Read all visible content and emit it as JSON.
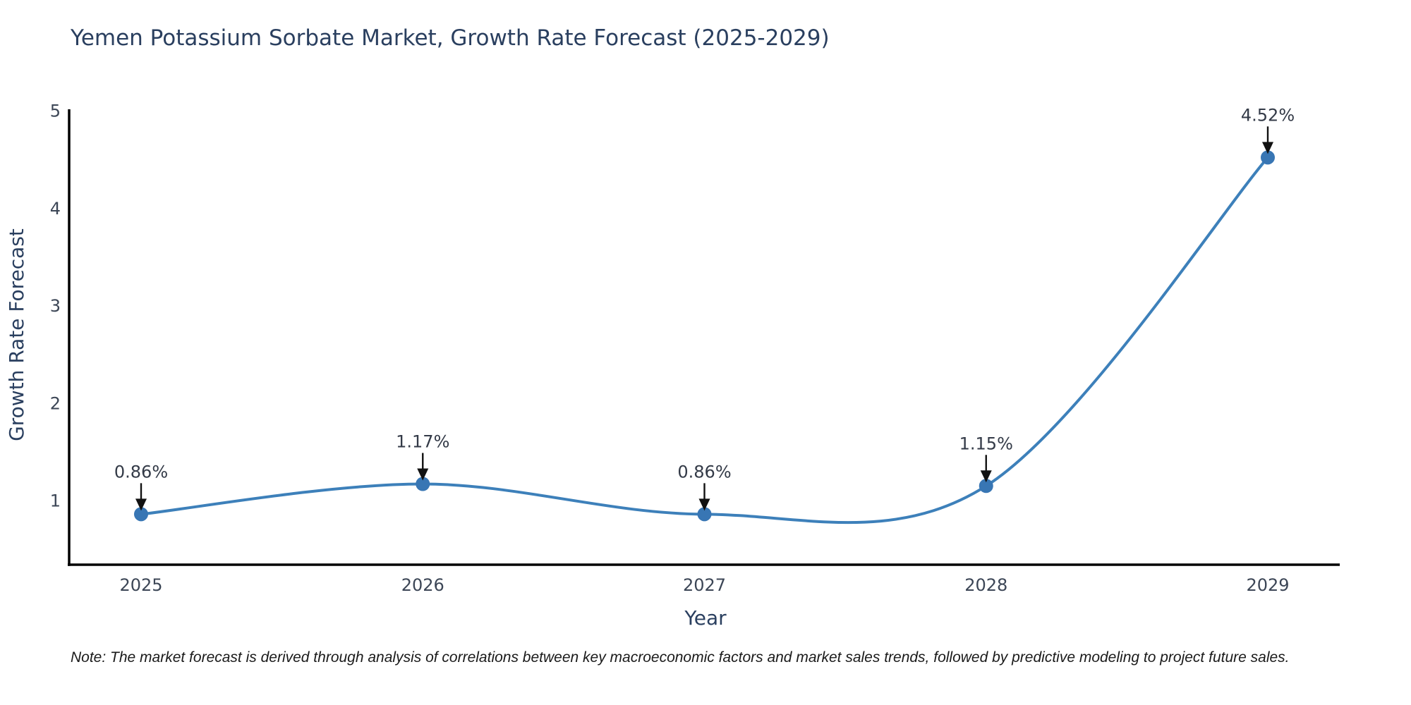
{
  "footnote": "Note: The market forecast is derived through analysis of correlations between key macroeconomic factors and market sales trends, followed by predictive modeling to project future sales.",
  "chart_data": {
    "type": "line",
    "title": "Yemen Potassium Sorbate Market, Growth Rate Forecast (2025-2029)",
    "xlabel": "Year",
    "ylabel": "Growth Rate Forecast",
    "x": [
      2025,
      2026,
      2027,
      2028,
      2029
    ],
    "xticks": [
      "2025",
      "2026",
      "2027",
      "2028",
      "2029"
    ],
    "series": [
      {
        "name": "Growth Rate Forecast",
        "values": [
          0.86,
          1.17,
          0.86,
          1.15,
          4.52
        ],
        "point_labels": [
          "0.86%",
          "1.17%",
          "0.86%",
          "1.15%",
          "4.52%"
        ]
      }
    ],
    "yticks": [
      1,
      2,
      3,
      4,
      5
    ],
    "ylim": [
      0.34,
      5.0
    ],
    "grid": false,
    "legend": null,
    "smooth": true,
    "marker": "circle",
    "annotation_arrows": true,
    "colors": {
      "line": "#3d80ba",
      "marker": "#3876b4",
      "axis": "#000000",
      "title": "#2a3f5f",
      "tick": "#3c4656",
      "annotation": "#333a47",
      "arrow": "#111111",
      "note": "#1a1a1a",
      "background": "#ffffff"
    }
  }
}
